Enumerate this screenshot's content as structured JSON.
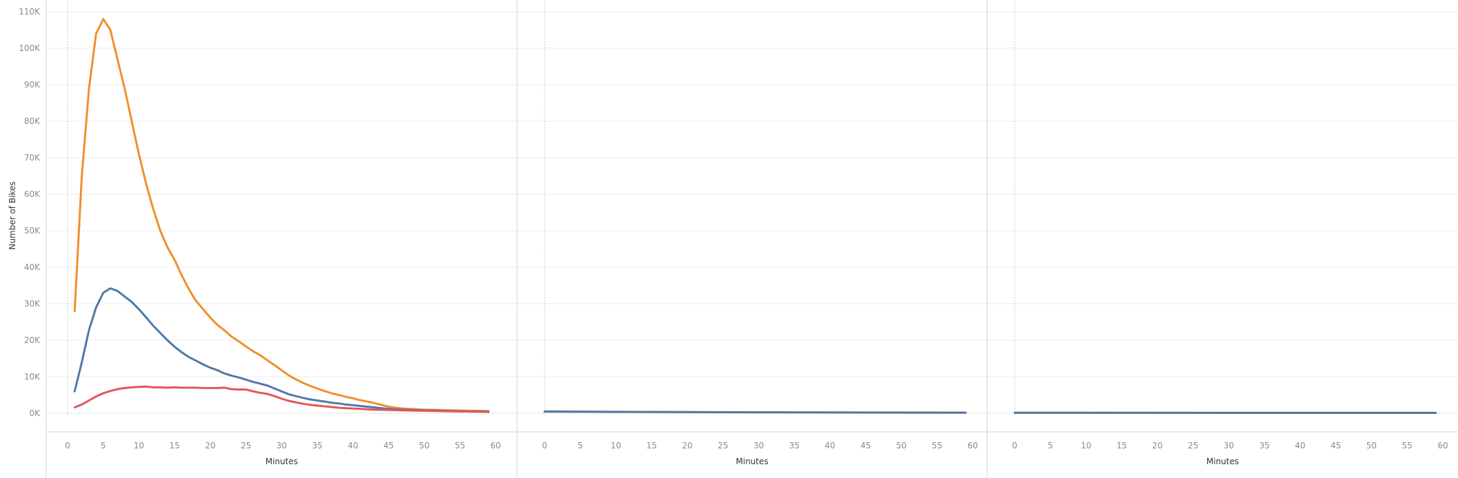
{
  "chart_data": {
    "type": "line",
    "ylabel": "Number of Bikes",
    "ylim": [
      0,
      110000
    ],
    "yticks": [
      {
        "value": 0,
        "label": "0K"
      },
      {
        "value": 10000,
        "label": "10K"
      },
      {
        "value": 20000,
        "label": "20K"
      },
      {
        "value": 30000,
        "label": "30K"
      },
      {
        "value": 40000,
        "label": "40K"
      },
      {
        "value": 50000,
        "label": "50K"
      },
      {
        "value": 60000,
        "label": "60K"
      },
      {
        "value": 70000,
        "label": "70K"
      },
      {
        "value": 80000,
        "label": "80K"
      },
      {
        "value": 90000,
        "label": "90K"
      },
      {
        "value": 100000,
        "label": "100K"
      },
      {
        "value": 110000,
        "label": "110K"
      }
    ],
    "xlim": [
      0,
      60
    ],
    "xticks": [
      0,
      5,
      10,
      15,
      20,
      25,
      30,
      35,
      40,
      45,
      50,
      55,
      60
    ],
    "grid": true,
    "legend": "none",
    "colors": {
      "orange": "#f28e2b",
      "blue": "#4e79a7",
      "red": "#e15759"
    },
    "panels": [
      {
        "xlabel": "Minutes",
        "series": [
          {
            "color": "orange",
            "points": [
              [
                1,
                28000
              ],
              [
                2,
                65000
              ],
              [
                3,
                89000
              ],
              [
                4,
                104000
              ],
              [
                5,
                108000
              ],
              [
                6,
                105000
              ],
              [
                7,
                97000
              ],
              [
                8,
                89000
              ],
              [
                9,
                80000
              ],
              [
                10,
                71000
              ],
              [
                11,
                63000
              ],
              [
                12,
                56000
              ],
              [
                13,
                50000
              ],
              [
                14,
                45500
              ],
              [
                15,
                42000
              ],
              [
                16,
                37800
              ],
              [
                17,
                34000
              ],
              [
                18,
                30800
              ],
              [
                19,
                28500
              ],
              [
                20,
                26200
              ],
              [
                21,
                24200
              ],
              [
                22,
                22700
              ],
              [
                23,
                21000
              ],
              [
                24,
                19700
              ],
              [
                25,
                18300
              ],
              [
                26,
                17000
              ],
              [
                27,
                15900
              ],
              [
                28,
                14500
              ],
              [
                29,
                13200
              ],
              [
                30,
                11800
              ],
              [
                31,
                10400
              ],
              [
                32,
                9300
              ],
              [
                33,
                8300
              ],
              [
                34,
                7500
              ],
              [
                35,
                6800
              ],
              [
                36,
                6100
              ],
              [
                37,
                5500
              ],
              [
                38,
                5000
              ],
              [
                39,
                4500
              ],
              [
                40,
                4100
              ],
              [
                41,
                3600
              ],
              [
                42,
                3200
              ],
              [
                43,
                2800
              ],
              [
                44,
                2300
              ],
              [
                45,
                1800
              ],
              [
                46,
                1500
              ],
              [
                47,
                1300
              ],
              [
                48,
                1200
              ],
              [
                49,
                1100
              ],
              [
                50,
                1000
              ],
              [
                51,
                950
              ],
              [
                52,
                900
              ],
              [
                53,
                850
              ],
              [
                54,
                800
              ],
              [
                55,
                760
              ],
              [
                56,
                720
              ],
              [
                57,
                680
              ],
              [
                58,
                640
              ],
              [
                59,
                600
              ]
            ]
          },
          {
            "color": "blue",
            "points": [
              [
                1,
                6000
              ],
              [
                2,
                14000
              ],
              [
                3,
                22800
              ],
              [
                4,
                29000
              ],
              [
                5,
                33000
              ],
              [
                6,
                34200
              ],
              [
                7,
                33500
              ],
              [
                8,
                32000
              ],
              [
                9,
                30500
              ],
              [
                10,
                28500
              ],
              [
                11,
                26300
              ],
              [
                12,
                24000
              ],
              [
                13,
                22000
              ],
              [
                14,
                20000
              ],
              [
                15,
                18200
              ],
              [
                16,
                16700
              ],
              [
                17,
                15400
              ],
              [
                18,
                14400
              ],
              [
                19,
                13400
              ],
              [
                20,
                12500
              ],
              [
                21,
                11800
              ],
              [
                22,
                10900
              ],
              [
                23,
                10300
              ],
              [
                24,
                9800
              ],
              [
                25,
                9200
              ],
              [
                26,
                8600
              ],
              [
                27,
                8100
              ],
              [
                28,
                7600
              ],
              [
                29,
                6800
              ],
              [
                30,
                6000
              ],
              [
                31,
                5200
              ],
              [
                32,
                4700
              ],
              [
                33,
                4200
              ],
              [
                34,
                3800
              ],
              [
                35,
                3500
              ],
              [
                36,
                3200
              ],
              [
                37,
                2900
              ],
              [
                38,
                2700
              ],
              [
                39,
                2400
              ],
              [
                40,
                2200
              ],
              [
                41,
                2000
              ],
              [
                42,
                1800
              ],
              [
                43,
                1600
              ],
              [
                44,
                1400
              ],
              [
                45,
                1200
              ],
              [
                46,
                1100
              ],
              [
                47,
                1000
              ],
              [
                48,
                900
              ],
              [
                49,
                850
              ],
              [
                50,
                800
              ],
              [
                51,
                750
              ],
              [
                52,
                700
              ],
              [
                53,
                650
              ],
              [
                54,
                600
              ],
              [
                55,
                560
              ],
              [
                56,
                530
              ],
              [
                57,
                500
              ],
              [
                58,
                480
              ],
              [
                59,
                460
              ]
            ]
          },
          {
            "color": "red",
            "points": [
              [
                1,
                1600
              ],
              [
                2,
                2400
              ],
              [
                3,
                3500
              ],
              [
                4,
                4600
              ],
              [
                5,
                5500
              ],
              [
                6,
                6100
              ],
              [
                7,
                6600
              ],
              [
                8,
                6900
              ],
              [
                9,
                7100
              ],
              [
                10,
                7200
              ],
              [
                11,
                7300
              ],
              [
                12,
                7100
              ],
              [
                13,
                7100
              ],
              [
                14,
                7000
              ],
              [
                15,
                7100
              ],
              [
                16,
                7000
              ],
              [
                17,
                7000
              ],
              [
                18,
                7000
              ],
              [
                19,
                6900
              ],
              [
                20,
                6900
              ],
              [
                21,
                6900
              ],
              [
                22,
                7000
              ],
              [
                23,
                6600
              ],
              [
                24,
                6500
              ],
              [
                25,
                6500
              ],
              [
                26,
                6000
              ],
              [
                27,
                5600
              ],
              [
                28,
                5300
              ],
              [
                29,
                4700
              ],
              [
                30,
                4000
              ],
              [
                31,
                3400
              ],
              [
                32,
                3000
              ],
              [
                33,
                2600
              ],
              [
                34,
                2300
              ],
              [
                35,
                2100
              ],
              [
                36,
                1900
              ],
              [
                37,
                1700
              ],
              [
                38,
                1500
              ],
              [
                39,
                1400
              ],
              [
                40,
                1300
              ],
              [
                41,
                1200
              ],
              [
                42,
                1100
              ],
              [
                43,
                1000
              ],
              [
                44,
                950
              ],
              [
                45,
                900
              ],
              [
                46,
                850
              ],
              [
                47,
                800
              ],
              [
                48,
                760
              ],
              [
                49,
                720
              ],
              [
                50,
                680
              ],
              [
                51,
                640
              ],
              [
                52,
                600
              ],
              [
                53,
                560
              ],
              [
                54,
                530
              ],
              [
                55,
                500
              ],
              [
                56,
                470
              ],
              [
                57,
                440
              ],
              [
                58,
                410
              ],
              [
                59,
                380
              ]
            ]
          }
        ]
      },
      {
        "xlabel": "Minutes",
        "series": [
          {
            "color": "orange",
            "points": [
              [
                0,
                450
              ],
              [
                10,
                380
              ],
              [
                20,
                320
              ],
              [
                30,
                270
              ],
              [
                40,
                230
              ],
              [
                50,
                200
              ],
              [
                59,
                180
              ]
            ]
          },
          {
            "color": "blue",
            "points": [
              [
                0,
                500
              ],
              [
                5,
                450
              ],
              [
                10,
                400
              ],
              [
                15,
                360
              ],
              [
                20,
                320
              ],
              [
                25,
                290
              ],
              [
                30,
                260
              ],
              [
                35,
                230
              ],
              [
                40,
                210
              ],
              [
                45,
                190
              ],
              [
                50,
                170
              ],
              [
                55,
                150
              ],
              [
                59,
                140
              ]
            ]
          }
        ]
      },
      {
        "xlabel": "Minutes",
        "series": [
          {
            "color": "orange",
            "points": [
              [
                0,
                120
              ],
              [
                30,
                100
              ],
              [
                59,
                90
              ]
            ]
          },
          {
            "color": "blue",
            "points": [
              [
                0,
                150
              ],
              [
                10,
                140
              ],
              [
                20,
                130
              ],
              [
                30,
                120
              ],
              [
                40,
                115
              ],
              [
                50,
                110
              ],
              [
                59,
                105
              ]
            ]
          }
        ]
      }
    ]
  }
}
